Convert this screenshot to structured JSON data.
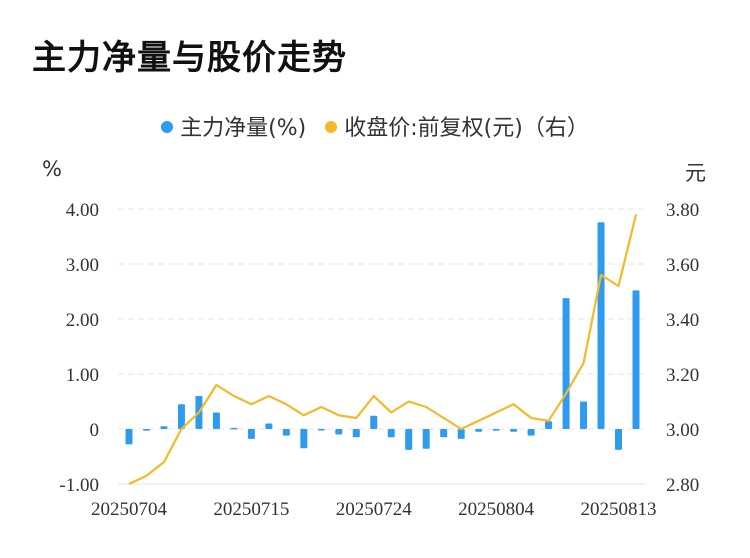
{
  "title": "主力净量与股价走势",
  "colors": {
    "bar": "#2F9BEE",
    "line": "#F4B928",
    "grid": "#E6E6E6"
  },
  "chart_data": {
    "type": "bar+line",
    "legend": [
      {
        "label": "主力净量(%)",
        "color": "#2F9BEE"
      },
      {
        "label": "收盘价:前复权(元)（右）",
        "color": "#F4B928"
      }
    ],
    "y_left_unit": "%",
    "y_right_unit": "元",
    "y_left_range": [
      -1.0,
      4.0
    ],
    "y_right_range": [
      2.8,
      3.8
    ],
    "y_left_ticks": [
      "4.00",
      "3.00",
      "2.00",
      "1.00",
      "0",
      "-1.00"
    ],
    "y_right_ticks": [
      "3.80",
      "3.60",
      "3.40",
      "3.20",
      "3.00",
      "2.80"
    ],
    "x_tick_labels": [
      "20250704",
      "20250715",
      "20250724",
      "20250804",
      "20250813"
    ],
    "x_tick_index": [
      0,
      7,
      14,
      21,
      28
    ],
    "legend_position": "top-center",
    "grid": "horizontal dashed",
    "series": [
      {
        "name": "主力净量(%)",
        "kind": "bar",
        "axis": "left",
        "values": [
          -0.28,
          -0.03,
          0.05,
          0.45,
          0.6,
          0.3,
          0.02,
          -0.18,
          0.1,
          -0.12,
          -0.35,
          -0.02,
          -0.1,
          -0.15,
          0.24,
          -0.15,
          -0.38,
          -0.36,
          -0.15,
          -0.18,
          -0.05,
          -0.03,
          -0.05,
          -0.12,
          0.14,
          2.38,
          0.5,
          3.76,
          -0.38,
          2.52
        ]
      },
      {
        "name": "收盘价:前复权(元)（右）",
        "kind": "line",
        "axis": "right",
        "values": [
          2.8,
          2.83,
          2.88,
          3.0,
          3.06,
          3.16,
          3.12,
          3.09,
          3.12,
          3.09,
          3.05,
          3.08,
          3.05,
          3.04,
          3.12,
          3.06,
          3.1,
          3.08,
          3.04,
          3.0,
          3.03,
          3.06,
          3.09,
          3.04,
          3.03,
          3.13,
          3.24,
          3.56,
          3.52,
          3.78
        ]
      }
    ]
  }
}
